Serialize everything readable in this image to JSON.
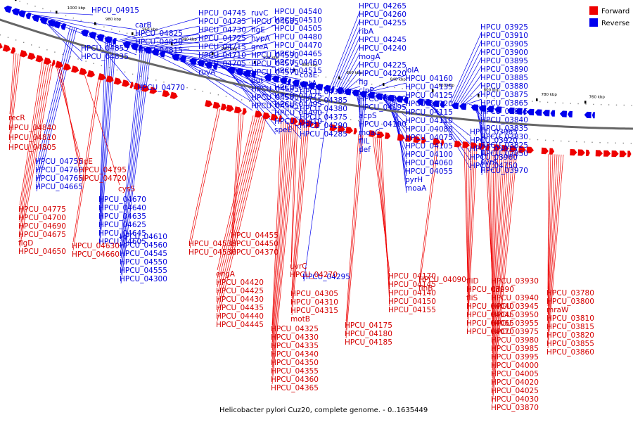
{
  "caption": "Helicobacter pylori Cuz20, complete genome. - 0..1635449",
  "legend": [
    {
      "label": "Forward",
      "color": "#ee0000"
    },
    {
      "label": "Reverse",
      "color": "#0000ee"
    }
  ],
  "colors": {
    "forward": "#ee0000",
    "reverse": "#0000ee",
    "backbone": "#555555"
  },
  "kbp_ticks": [
    "1020 kbp",
    "1000 kbp",
    "980 kbp",
    "960 kbp",
    "940 kbp",
    "920 kbp",
    "900 kbp",
    "880 kbp",
    "860 kbp",
    "840 kbp",
    "820 kbp",
    "800 kbp",
    "780 kbp",
    "760 kbp"
  ],
  "reverse_labels": [
    "HPCU_04915",
    "carB",
    "HPCU_04825",
    "HPCU_04820",
    "HPCU_04815",
    "HPCU_04855",
    "HPCU_04835",
    "HPCU_04770",
    "HPCU_04745",
    "HPCU_04735",
    "HPCU_04730",
    "HPCU_04725",
    "HPCU_04715",
    "HPCU_04710",
    "HPCU_04705",
    "ruvA",
    "ruvC",
    "HPCU_04685",
    "flgE",
    "hypA",
    "greA",
    "HPCU_04590",
    "HPCU_04575",
    "HPCU_04570",
    "dut",
    "HPCU_04585",
    "HPCU_04580",
    "HPCU_04565",
    "HPCU_04540",
    "HPCU_04510",
    "HPCU_04505",
    "HPCU_04480",
    "HPCU_04470",
    "HPCU_04465",
    "HPCU_04460",
    "HPCU_04515",
    "thiE",
    "HPCU_04485",
    "HPCU_04475",
    "HPCU_04495",
    "HPCU_04490",
    "HPCU_04410",
    "speE",
    "coaE",
    "gatA",
    "HPCU_04390",
    "HPCU_04385",
    "HPCU_04380",
    "HPCU_04375",
    "HPCU_04290",
    "HPCU_04285",
    "HPCU_04265",
    "HPCU_04260",
    "HPCU_04255",
    "ribA",
    "HPCU_04245",
    "HPCU_04240",
    "mogA",
    "HPCU_04225",
    "HPCU_04220",
    "fig",
    "clpP",
    "HPCU_04200",
    "HPCU_04195",
    "acpS",
    "HPCU_04190",
    "moaC",
    "fliL",
    "def",
    "lolA",
    "HPCU_04160",
    "HPCU_04135",
    "HPCU_04125",
    "HPCU_04120",
    "HPCU_04115",
    "HPCU_04110",
    "HPCU_04080",
    "HPCU_04075",
    "HPCU_04105",
    "HPCU_04100",
    "HPCU_04060",
    "HPCU_04055",
    "pyrH",
    "moaA",
    "HPCU_03925",
    "HPCU_03910",
    "HPCU_03905",
    "HPCU_03900",
    "HPCU_03895",
    "HPCU_03890",
    "HPCU_03885",
    "HPCU_03880",
    "HPCU_03875",
    "HPCU_03865",
    "HPCU_03845",
    "HPCU_03840",
    "HPCU_03835",
    "HPCU_03830",
    "HPCU_03825",
    "HPCU_03850",
    "uvrA",
    "HPCU_03970",
    "HPCU_03965",
    "HPCU_03920",
    "HPCU_03915",
    "HPCU_03960",
    "HPCU_04750",
    "HPCU_04755",
    "HPCU_04760",
    "HPCU_04765",
    "HPCU_04665",
    "HPCU_04670",
    "HPCU_04640",
    "HPCU_04635",
    "HPCU_04625",
    "HPCU_04645",
    "HPCU_04605",
    "HPCU_04610",
    "HPCU_04560",
    "HPCU_04545",
    "HPCU_04550",
    "HPCU_04555",
    "HPCU_04300",
    "HPCU_04295"
  ],
  "forward_labels": [
    "recR",
    "HPCU_04840",
    "HPCU_04810",
    "HPCU_04805",
    "flgE",
    "HPCU_04795",
    "HPCU_04720",
    "cysS",
    "HPCU_04775",
    "HPCU_04700",
    "HPCU_04690",
    "HPCU_04675",
    "flgD",
    "HPCU_04650",
    "HPCU_04630",
    "HPCU_04660",
    "HPCU_04535",
    "HPCU_04530",
    "HPCU_04455",
    "HPCU_04450",
    "HPCU_04370",
    "engA",
    "HPCU_04420",
    "HPCU_04425",
    "HPCU_04430",
    "HPCU_04435",
    "HPCU_04440",
    "HPCU_04445",
    "uvrC",
    "HPCU_04270",
    "HPCU_04305",
    "HPCU_04310",
    "HPCU_04315",
    "motB",
    "HPCU_04325",
    "HPCU_04330",
    "HPCU_04335",
    "HPCU_04340",
    "HPCU_04350",
    "HPCU_04355",
    "HPCU_04360",
    "HPCU_04365",
    "HPCU_04170",
    "HPCU_04145",
    "HPCU_04140",
    "HPCU_04150",
    "HPCU_04155",
    "HPCU_04175",
    "HPCU_04180",
    "HPCU_04185",
    "HPCU_04090",
    "flhB",
    "fliD",
    "HPCU_03990",
    "fliS",
    "HPCU_04040",
    "HPCU_04045",
    "HPCU_04065",
    "HPCU_04070",
    "HPCU_03930",
    "ddl",
    "HPCU_03940",
    "HPCU_03945",
    "HPCU_03950",
    "HPCU_03955",
    "HPCU_03975",
    "HPCU_03980",
    "HPCU_03985",
    "HPCU_03995",
    "HPCU_04000",
    "HPCU_04005",
    "HPCU_04020",
    "HPCU_04025",
    "HPCU_04030",
    "HPCU_03870",
    "HPCU_03780",
    "HPCU_03800",
    "mraW",
    "HPCU_03810",
    "HPCU_03815",
    "HPCU_03820",
    "HPCU_03855",
    "HPCU_03860"
  ]
}
